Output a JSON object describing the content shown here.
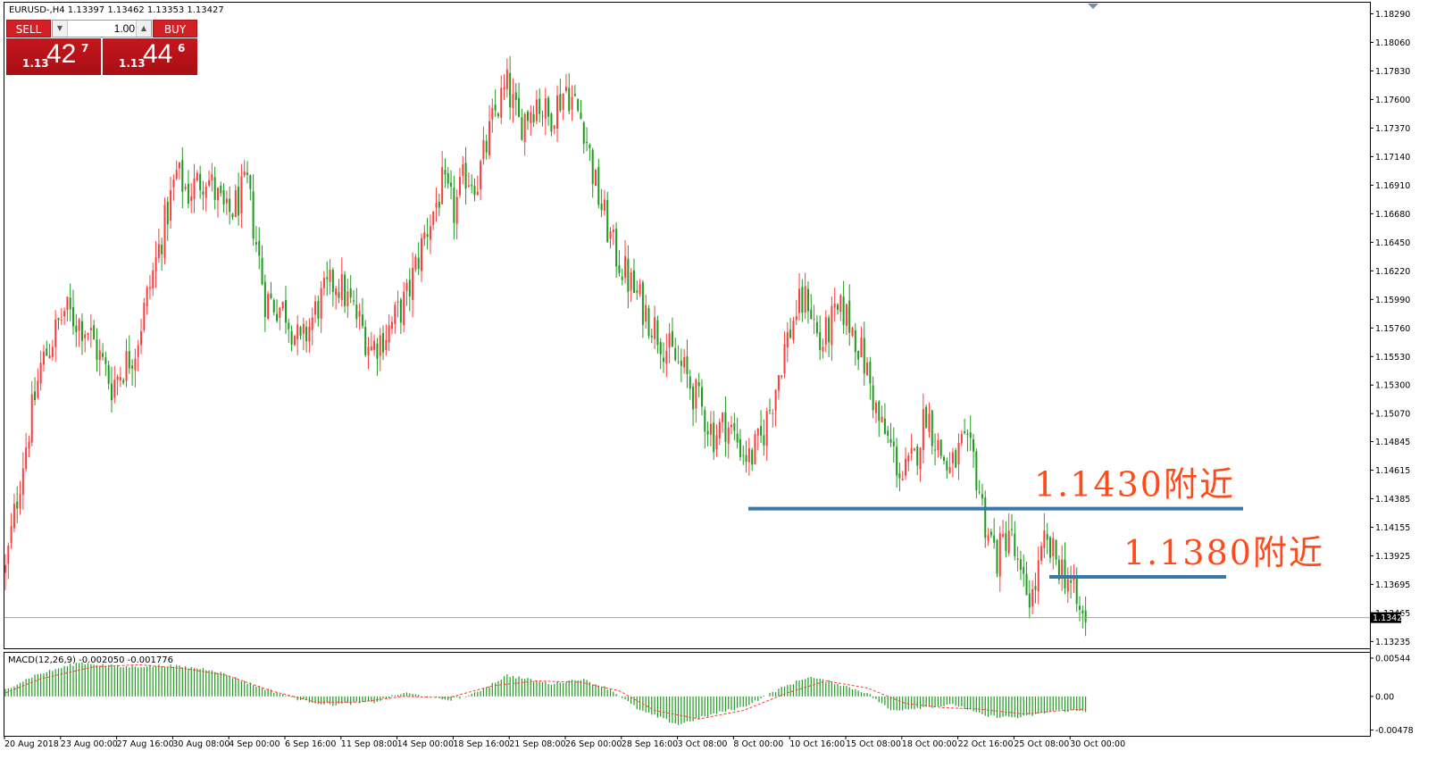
{
  "header": {
    "symbol_info": "EURUSD-,H4  1.13397 1.13462 1.13353 1.13427",
    "macd_label": "MACD(12,26,9) -0.002050 -0.001776"
  },
  "trade_panel": {
    "sell_label": "SELL",
    "buy_label": "BUY",
    "lot_value": "1.00",
    "sell_price": {
      "prefix": "1.13",
      "big": "42",
      "sup": "7"
    },
    "buy_price": {
      "prefix": "1.13",
      "big": "44",
      "sup": "6"
    },
    "colors": {
      "button": "#d22027"
    }
  },
  "annotations": [
    {
      "text": "1.1430附近",
      "price": 1.14305
    },
    {
      "text": "1.1380附近",
      "price": 1.13755
    }
  ],
  "chart_data": [
    {
      "type": "candlestick",
      "symbol": "EURUSD-",
      "timeframe": "H4",
      "ylim": [
        1.1318,
        1.1838
      ],
      "y_ticks": [
        "1.18290",
        "1.18060",
        "1.17830",
        "1.17600",
        "1.17370",
        "1.17140",
        "1.16910",
        "1.16680",
        "1.16450",
        "1.16220",
        "1.15990",
        "1.15760",
        "1.15530",
        "1.15300",
        "1.15070",
        "1.14845",
        "1.14615",
        "1.14385",
        "1.14155",
        "1.13925",
        "1.13695",
        "1.13465",
        "1.13235"
      ],
      "current_price": "1.13427",
      "x_labels": [
        "20 Aug 2018",
        "23 Aug 00:00",
        "27 Aug 16:00",
        "30 Aug 08:00",
        "4 Sep 00:00",
        "6 Sep 16:00",
        "11 Sep 08:00",
        "14 Sep 00:00",
        "18 Sep 16:00",
        "21 Sep 08:00",
        "26 Sep 00:00",
        "28 Sep 16:00",
        "3 Oct 08:00",
        "8 Oct 00:00",
        "10 Oct 16:00",
        "15 Oct 08:00",
        "18 Oct 00:00",
        "22 Oct 16:00",
        "25 Oct 08:00",
        "30 Oct 00:00"
      ],
      "colors": {
        "up": "#ff3c3c",
        "down": "#1e9a1e",
        "line": "#3a78a8"
      },
      "close_path": [
        [
          0,
          1.138
        ],
        [
          6,
          1.147
        ],
        [
          12,
          1.1545
        ],
        [
          20,
          1.159
        ],
        [
          28,
          1.1575
        ],
        [
          36,
          1.153
        ],
        [
          44,
          1.156
        ],
        [
          52,
          1.164
        ],
        [
          58,
          1.17
        ],
        [
          62,
          1.1685
        ],
        [
          68,
          1.17
        ],
        [
          75,
          1.1665
        ],
        [
          82,
          1.169
        ],
        [
          88,
          1.16
        ],
        [
          95,
          1.159
        ],
        [
          100,
          1.156
        ],
        [
          106,
          1.1595
        ],
        [
          112,
          1.1615
        ],
        [
          118,
          1.159
        ],
        [
          124,
          1.156
        ],
        [
          130,
          1.1575
        ],
        [
          136,
          1.16
        ],
        [
          142,
          1.165
        ],
        [
          148,
          1.169
        ],
        [
          152,
          1.167
        ],
        [
          156,
          1.17
        ],
        [
          160,
          1.1695
        ],
        [
          166,
          1.175
        ],
        [
          170,
          1.177
        ],
        [
          174,
          1.174
        ],
        [
          180,
          1.176
        ],
        [
          184,
          1.1745
        ],
        [
          190,
          1.177
        ],
        [
          196,
          1.174
        ],
        [
          200,
          1.169
        ],
        [
          206,
          1.164
        ],
        [
          212,
          1.161
        ],
        [
          218,
          1.1585
        ],
        [
          224,
          1.156
        ],
        [
          230,
          1.154
        ],
        [
          236,
          1.151
        ],
        [
          240,
          1.149
        ],
        [
          244,
          1.15
        ],
        [
          248,
          1.1485
        ],
        [
          252,
          1.147
        ],
        [
          256,
          1.1485
        ],
        [
          260,
          1.152
        ],
        [
          264,
          1.156
        ],
        [
          268,
          1.159
        ],
        [
          272,
          1.16
        ],
        [
          276,
          1.156
        ],
        [
          280,
          1.158
        ],
        [
          284,
          1.159
        ],
        [
          288,
          1.157
        ],
        [
          292,
          1.154
        ],
        [
          296,
          1.15
        ],
        [
          300,
          1.148
        ],
        [
          304,
          1.1455
        ],
        [
          308,
          1.147
        ],
        [
          312,
          1.151
        ],
        [
          316,
          1.148
        ],
        [
          320,
          1.146
        ],
        [
          324,
          1.148
        ],
        [
          328,
          1.147
        ],
        [
          332,
          1.142
        ],
        [
          336,
          1.139
        ],
        [
          340,
          1.1415
        ],
        [
          344,
          1.137
        ],
        [
          348,
          1.136
        ],
        [
          352,
          1.14
        ],
        [
          356,
          1.139
        ],
        [
          360,
          1.1375
        ],
        [
          364,
          1.1345
        ],
        [
          366,
          1.1343
        ]
      ],
      "n_bars": 367,
      "levels": [
        1.14305,
        1.13755
      ]
    },
    {
      "type": "macd",
      "params": "12,26,9",
      "main": "-0.002050",
      "signal": "-0.001776",
      "y_ticks": [
        "0.00544",
        "0.00",
        "-0.00478"
      ],
      "ylim": [
        -0.0056,
        0.0062
      ],
      "colors": {
        "hist": "#1e9a1e",
        "signal": "#ff3c3c"
      },
      "hist_path": [
        [
          0,
          0.001
        ],
        [
          10,
          0.003
        ],
        [
          25,
          0.0048
        ],
        [
          40,
          0.0042
        ],
        [
          55,
          0.0044
        ],
        [
          70,
          0.0038
        ],
        [
          85,
          0.0015
        ],
        [
          100,
          -0.0005
        ],
        [
          110,
          -0.0012
        ],
        [
          125,
          -0.0008
        ],
        [
          135,
          0.0005
        ],
        [
          150,
          -0.0005
        ],
        [
          158,
          0.0002
        ],
        [
          170,
          0.003
        ],
        [
          185,
          0.0018
        ],
        [
          195,
          0.0025
        ],
        [
          205,
          0.001
        ],
        [
          215,
          -0.002
        ],
        [
          228,
          -0.004
        ],
        [
          240,
          -0.0025
        ],
        [
          250,
          -0.0015
        ],
        [
          262,
          0.001
        ],
        [
          272,
          0.0028
        ],
        [
          282,
          0.0018
        ],
        [
          292,
          0.0005
        ],
        [
          300,
          -0.002
        ],
        [
          312,
          -0.0015
        ],
        [
          322,
          -0.0012
        ],
        [
          332,
          -0.0028
        ],
        [
          344,
          -0.003
        ],
        [
          356,
          -0.002
        ],
        [
          366,
          -0.0021
        ]
      ],
      "signal_path": [
        [
          0,
          0.0005
        ],
        [
          12,
          0.0025
        ],
        [
          30,
          0.0042
        ],
        [
          45,
          0.0045
        ],
        [
          60,
          0.004
        ],
        [
          75,
          0.003
        ],
        [
          90,
          0.0008
        ],
        [
          105,
          -0.0008
        ],
        [
          120,
          -0.0008
        ],
        [
          135,
          0.0
        ],
        [
          150,
          -0.0002
        ],
        [
          165,
          0.0015
        ],
        [
          180,
          0.0022
        ],
        [
          195,
          0.002
        ],
        [
          208,
          0.0008
        ],
        [
          220,
          -0.002
        ],
        [
          235,
          -0.0032
        ],
        [
          250,
          -0.002
        ],
        [
          265,
          0.0005
        ],
        [
          278,
          0.0022
        ],
        [
          292,
          0.0012
        ],
        [
          305,
          -0.001
        ],
        [
          318,
          -0.0016
        ],
        [
          330,
          -0.0018
        ],
        [
          345,
          -0.0025
        ],
        [
          358,
          -0.002
        ],
        [
          366,
          -0.0018
        ]
      ]
    }
  ]
}
